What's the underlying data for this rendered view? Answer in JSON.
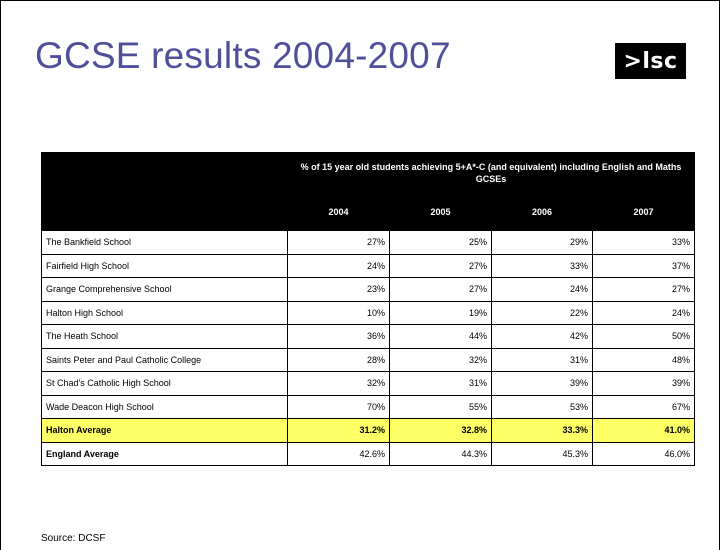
{
  "slide": {
    "title": "GCSE results 2004-2007",
    "logo_text": ">lsc",
    "source": "Source: DCSF"
  },
  "table": {
    "header": "% of 15 year old students achieving 5+A*-C (and equivalent) including English and Maths GCSEs",
    "years": [
      "2004",
      "2005",
      "2006",
      "2007"
    ],
    "rows": [
      {
        "name": "The Bankfield School",
        "values": [
          "27%",
          "25%",
          "29%",
          "33%"
        ]
      },
      {
        "name": "Fairfield High School",
        "values": [
          "24%",
          "27%",
          "33%",
          "37%"
        ]
      },
      {
        "name": "Grange Comprehensive School",
        "values": [
          "23%",
          "27%",
          "24%",
          "27%"
        ]
      },
      {
        "name": "Halton High School",
        "values": [
          "10%",
          "19%",
          "22%",
          "24%"
        ]
      },
      {
        "name": "The Heath School",
        "values": [
          "36%",
          "44%",
          "42%",
          "50%"
        ]
      },
      {
        "name": "Saints Peter and Paul Catholic College",
        "values": [
          "28%",
          "32%",
          "31%",
          "48%"
        ]
      },
      {
        "name": "St Chad's Catholic High School",
        "values": [
          "32%",
          "31%",
          "39%",
          "39%"
        ]
      },
      {
        "name": "Wade Deacon High School",
        "values": [
          "70%",
          "55%",
          "53%",
          "67%"
        ]
      },
      {
        "name": "Halton Average",
        "values": [
          "31.2%",
          "32.8%",
          "33.3%",
          "41.0%"
        ]
      },
      {
        "name": "England Average",
        "values": [
          "42.6%",
          "44.3%",
          "45.3%",
          "46.0%"
        ]
      }
    ]
  },
  "colors": {
    "title": "#4f4f9a",
    "header_bg": "#000000",
    "highlight_row": "#ffff66"
  }
}
